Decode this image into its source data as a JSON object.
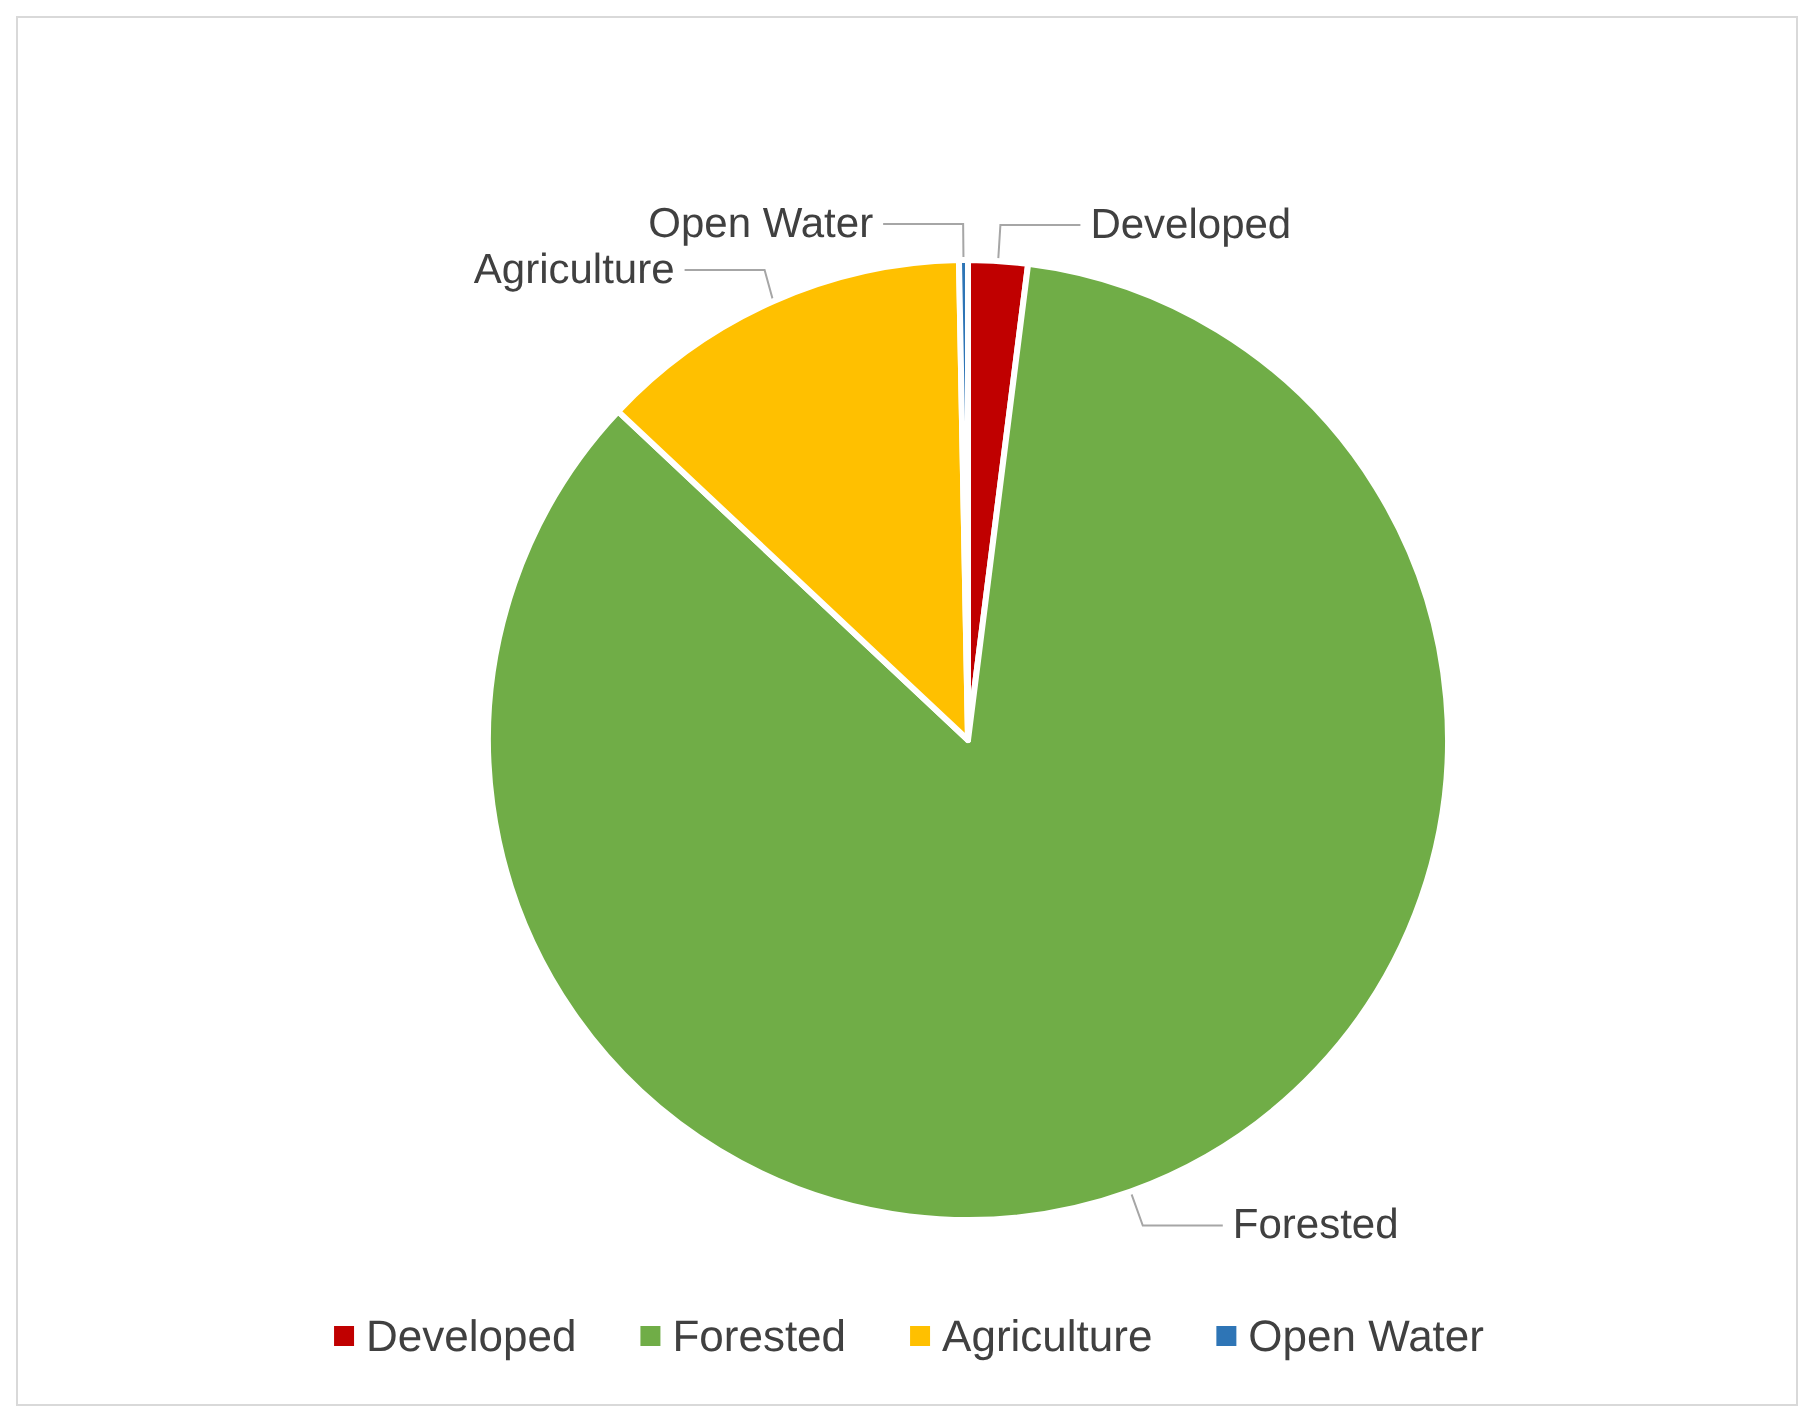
{
  "chart_data": {
    "type": "pie",
    "categories": [
      "Developed",
      "Forested",
      "Agriculture",
      "Open Water"
    ],
    "values": [
      2,
      85,
      12.7,
      0.3
    ],
    "colors": [
      "#c00000",
      "#70ad47",
      "#ffc000",
      "#2e75b6"
    ],
    "legend": "bottom"
  }
}
